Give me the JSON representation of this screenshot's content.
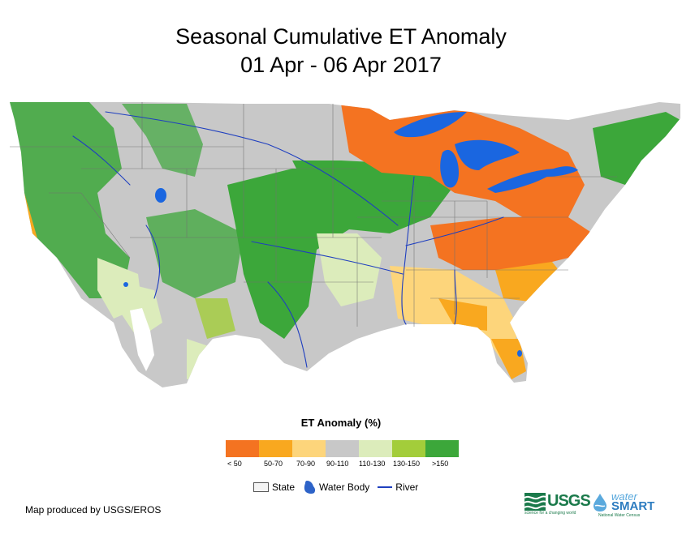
{
  "title": {
    "line1": "Seasonal Cumulative ET Anomaly",
    "line2": "01 Apr - 06 Apr 2017"
  },
  "legend": {
    "title": "ET Anomaly (%)",
    "classes": [
      {
        "label": "< 50",
        "color": "#f47321"
      },
      {
        "label": "50-70",
        "color": "#f9a81f"
      },
      {
        "label": "70-90",
        "color": "#fdd57b"
      },
      {
        "label": "90-110",
        "color": "#c8c8c8"
      },
      {
        "label": "110-130",
        "color": "#dcecbb"
      },
      {
        "label": "130-150",
        "color": "#a3cd3a"
      },
      {
        "label": ">150",
        "color": "#3ca73a"
      }
    ],
    "keys": {
      "state": "State",
      "water_body": "Water Body",
      "river": "River"
    }
  },
  "colors": {
    "water": "#1a66e0",
    "river": "#1f3fbf",
    "state_border": "#707070",
    "no_data": "#ffffff"
  },
  "credit": "Map produced by USGS/EROS",
  "logos": {
    "usgs": "USGS",
    "usgs_tagline": "science for a changing world",
    "watersmart_top": "water",
    "watersmart_bottom": "SMART",
    "watersmart_tagline": "National Water Census"
  }
}
